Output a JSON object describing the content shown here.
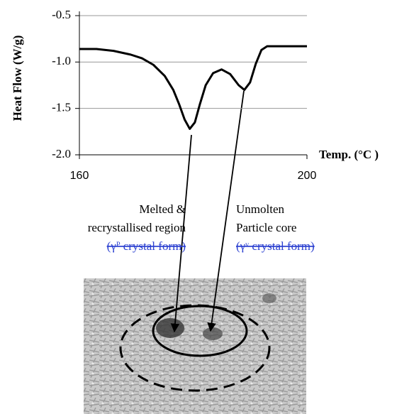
{
  "chart_data": {
    "type": "line",
    "y_label": "Heat Flow (W/g)",
    "x_label": "Temp. (°C )",
    "x": [
      160,
      163,
      166,
      169,
      171,
      173,
      175,
      176.5,
      177.5,
      178.5,
      179.4,
      180.3,
      181.2,
      182.2,
      183.5,
      185,
      186.5,
      188,
      189,
      190,
      191,
      192,
      193,
      196,
      200
    ],
    "values": [
      -0.86,
      -0.86,
      -0.88,
      -0.92,
      -0.96,
      -1.03,
      -1.15,
      -1.3,
      -1.45,
      -1.62,
      -1.72,
      -1.65,
      -1.45,
      -1.25,
      -1.12,
      -1.08,
      -1.13,
      -1.25,
      -1.3,
      -1.22,
      -1.02,
      -0.87,
      -0.83,
      -0.83,
      -0.83
    ],
    "color": "#000000",
    "xlim": [
      160,
      200
    ],
    "xticks": [
      160,
      200
    ],
    "ylim": [
      -2.0,
      -0.5
    ],
    "yticks": [
      -0.5,
      {
        "value": -1.0,
        "label": "-1.0"
      },
      -1.5,
      {
        "value": -2.0,
        "label": "-2.0"
      }
    ],
    "grid": true,
    "annotations": [
      "Melted &",
      "recrystallised region",
      "(γᴾ crystal form)",
      "Unmolten",
      "Particle core",
      "(γᵛ crystal form)"
    ]
  }
}
